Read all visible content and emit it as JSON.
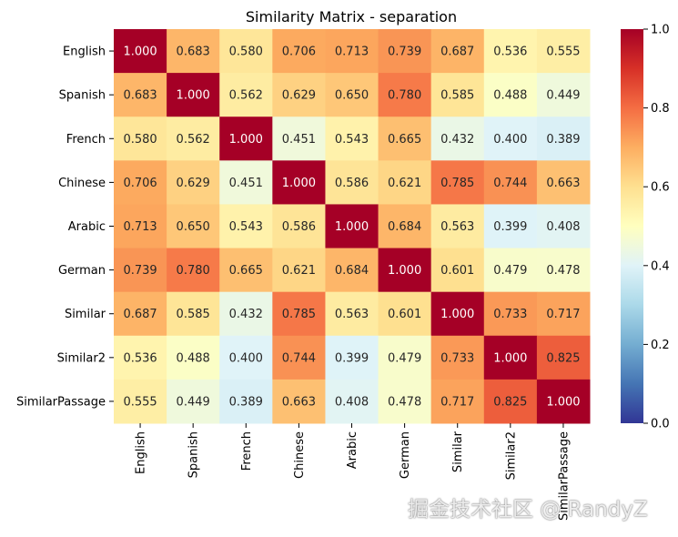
{
  "chart_data": {
    "type": "heatmap",
    "title": "Similarity Matrix - separation",
    "rows": [
      "English",
      "Spanish",
      "French",
      "Chinese",
      "Arabic",
      "German",
      "Similar",
      "Similar2",
      "SimilarPassage"
    ],
    "columns": [
      "English",
      "Spanish",
      "French",
      "Chinese",
      "Arabic",
      "German",
      "Similar",
      "Similar2",
      "SimilarPassage"
    ],
    "values": [
      [
        1.0,
        0.683,
        0.58,
        0.706,
        0.713,
        0.739,
        0.687,
        0.536,
        0.555
      ],
      [
        0.683,
        1.0,
        0.562,
        0.629,
        0.65,
        0.78,
        0.585,
        0.488,
        0.449
      ],
      [
        0.58,
        0.562,
        1.0,
        0.451,
        0.543,
        0.665,
        0.432,
        0.4,
        0.389
      ],
      [
        0.706,
        0.629,
        0.451,
        1.0,
        0.586,
        0.621,
        0.785,
        0.744,
        0.663
      ],
      [
        0.713,
        0.65,
        0.543,
        0.586,
        1.0,
        0.684,
        0.563,
        0.399,
        0.408
      ],
      [
        0.739,
        0.78,
        0.665,
        0.621,
        0.684,
        1.0,
        0.601,
        0.479,
        0.478
      ],
      [
        0.687,
        0.585,
        0.432,
        0.785,
        0.563,
        0.601,
        1.0,
        0.733,
        0.717
      ],
      [
        0.536,
        0.488,
        0.4,
        0.744,
        0.399,
        0.479,
        0.733,
        1.0,
        0.825
      ],
      [
        0.555,
        0.449,
        0.389,
        0.663,
        0.408,
        0.478,
        0.717,
        0.825,
        1.0
      ]
    ],
    "value_format": "3 decimals",
    "colormap": "RdYlBu_r",
    "colorbar": {
      "range": [
        0.0,
        1.0
      ],
      "ticks": [
        "0.0",
        "0.2",
        "0.4",
        "0.6",
        "0.8",
        "1.0"
      ]
    },
    "grid": false,
    "legend": "colorbar right"
  },
  "watermark": "掘金技术社区 @ RandyZ"
}
